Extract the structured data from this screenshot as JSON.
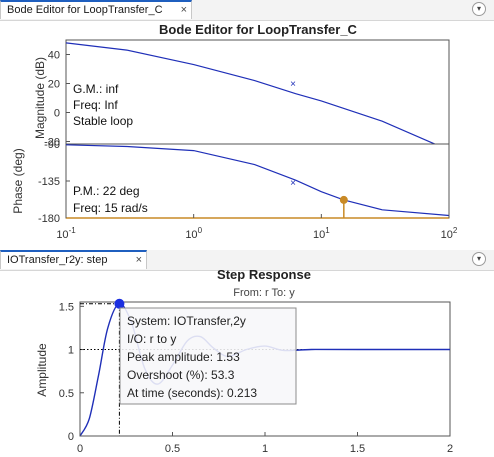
{
  "tabs": {
    "bode_tab_label": "Bode Editor for LoopTransfer_C",
    "step_tab_label": "IOTransfer_r2y: step",
    "close_glyph": "×",
    "menu_glyph": "▾"
  },
  "bode": {
    "title": "Bode Editor for LoopTransfer_C",
    "mag_ylabel": "Magnitude (dB)",
    "phase_ylabel": "Phase (deg)",
    "mag_ticks": [
      "40",
      "20",
      "0",
      "-20"
    ],
    "phase_ticks": [
      "-90",
      "-135",
      "-180"
    ],
    "x_ticks": [
      {
        "base": "10",
        "exp": "-1"
      },
      {
        "base": "10",
        "exp": "0"
      },
      {
        "base": "10",
        "exp": "1"
      },
      {
        "base": "10",
        "exp": "2"
      }
    ],
    "mag_info": [
      "G.M.: inf",
      "Freq: Inf",
      "Stable loop"
    ],
    "phase_info": [
      "P.M.: 22 deg",
      "Freq: 15 rad/s"
    ],
    "pm_frequency": 15,
    "line_color": "#1f2fb8",
    "marker_color": "#c98a26"
  },
  "step": {
    "title": "Step Response",
    "subtitle": "From: r  To: y",
    "ylabel": "Amplitude",
    "y_ticks": [
      "1.5",
      "1",
      "0.5",
      "0"
    ],
    "x_ticks": [
      "0",
      "0.5",
      "1",
      "1.5",
      "2"
    ],
    "peak": {
      "time": 0.213,
      "amplitude": 1.53
    },
    "datatip": [
      "System:  IOTransfer,2y",
      "I/O:  r  to  y",
      "Peak  amplitude:  1.53",
      "Overshoot  (%):  53.3",
      "At  time  (seconds):  0.213"
    ],
    "line_color": "#1f2fb8"
  },
  "chart_data": [
    {
      "type": "line",
      "title": "Bode Editor for LoopTransfer_C",
      "ylabel": "Magnitude (dB)",
      "x_scale": "log",
      "xlim": [
        0.1,
        100
      ],
      "ylim": [
        -30,
        50
      ],
      "series": [
        {
          "x": [
            0.1,
            0.3,
            1,
            3,
            6.3,
            10,
            30,
            100
          ],
          "values": [
            48,
            43,
            33,
            22,
            13,
            8,
            -6,
            -26
          ]
        }
      ]
    },
    {
      "type": "line",
      "ylabel": "Phase (deg)",
      "x_scale": "log",
      "xlim": [
        0.1,
        100
      ],
      "ylim": [
        -180,
        -90
      ],
      "series": [
        {
          "x": [
            0.1,
            0.3,
            1,
            3,
            6.3,
            10,
            15,
            30,
            100
          ],
          "values": [
            -91,
            -93,
            -98,
            -115,
            -134,
            -148,
            -158,
            -170,
            -177
          ]
        }
      ]
    },
    {
      "type": "line",
      "title": "Step Response",
      "subtitle": "From: r  To: y",
      "ylabel": "Amplitude",
      "xlim": [
        0,
        2
      ],
      "ylim": [
        0,
        1.55
      ],
      "series": [
        {
          "x": [
            0,
            0.05,
            0.1,
            0.15,
            0.213,
            0.28,
            0.35,
            0.42,
            0.5,
            0.58,
            0.65,
            0.72,
            0.8,
            0.9,
            1.0,
            1.1,
            1.25,
            1.5,
            2.0
          ],
          "values": [
            0,
            0.2,
            0.7,
            1.25,
            1.53,
            1.3,
            0.78,
            0.6,
            0.82,
            1.1,
            1.15,
            1.02,
            0.92,
            1.0,
            1.04,
            0.99,
            1.0,
            1.0,
            1.0
          ]
        }
      ]
    }
  ]
}
